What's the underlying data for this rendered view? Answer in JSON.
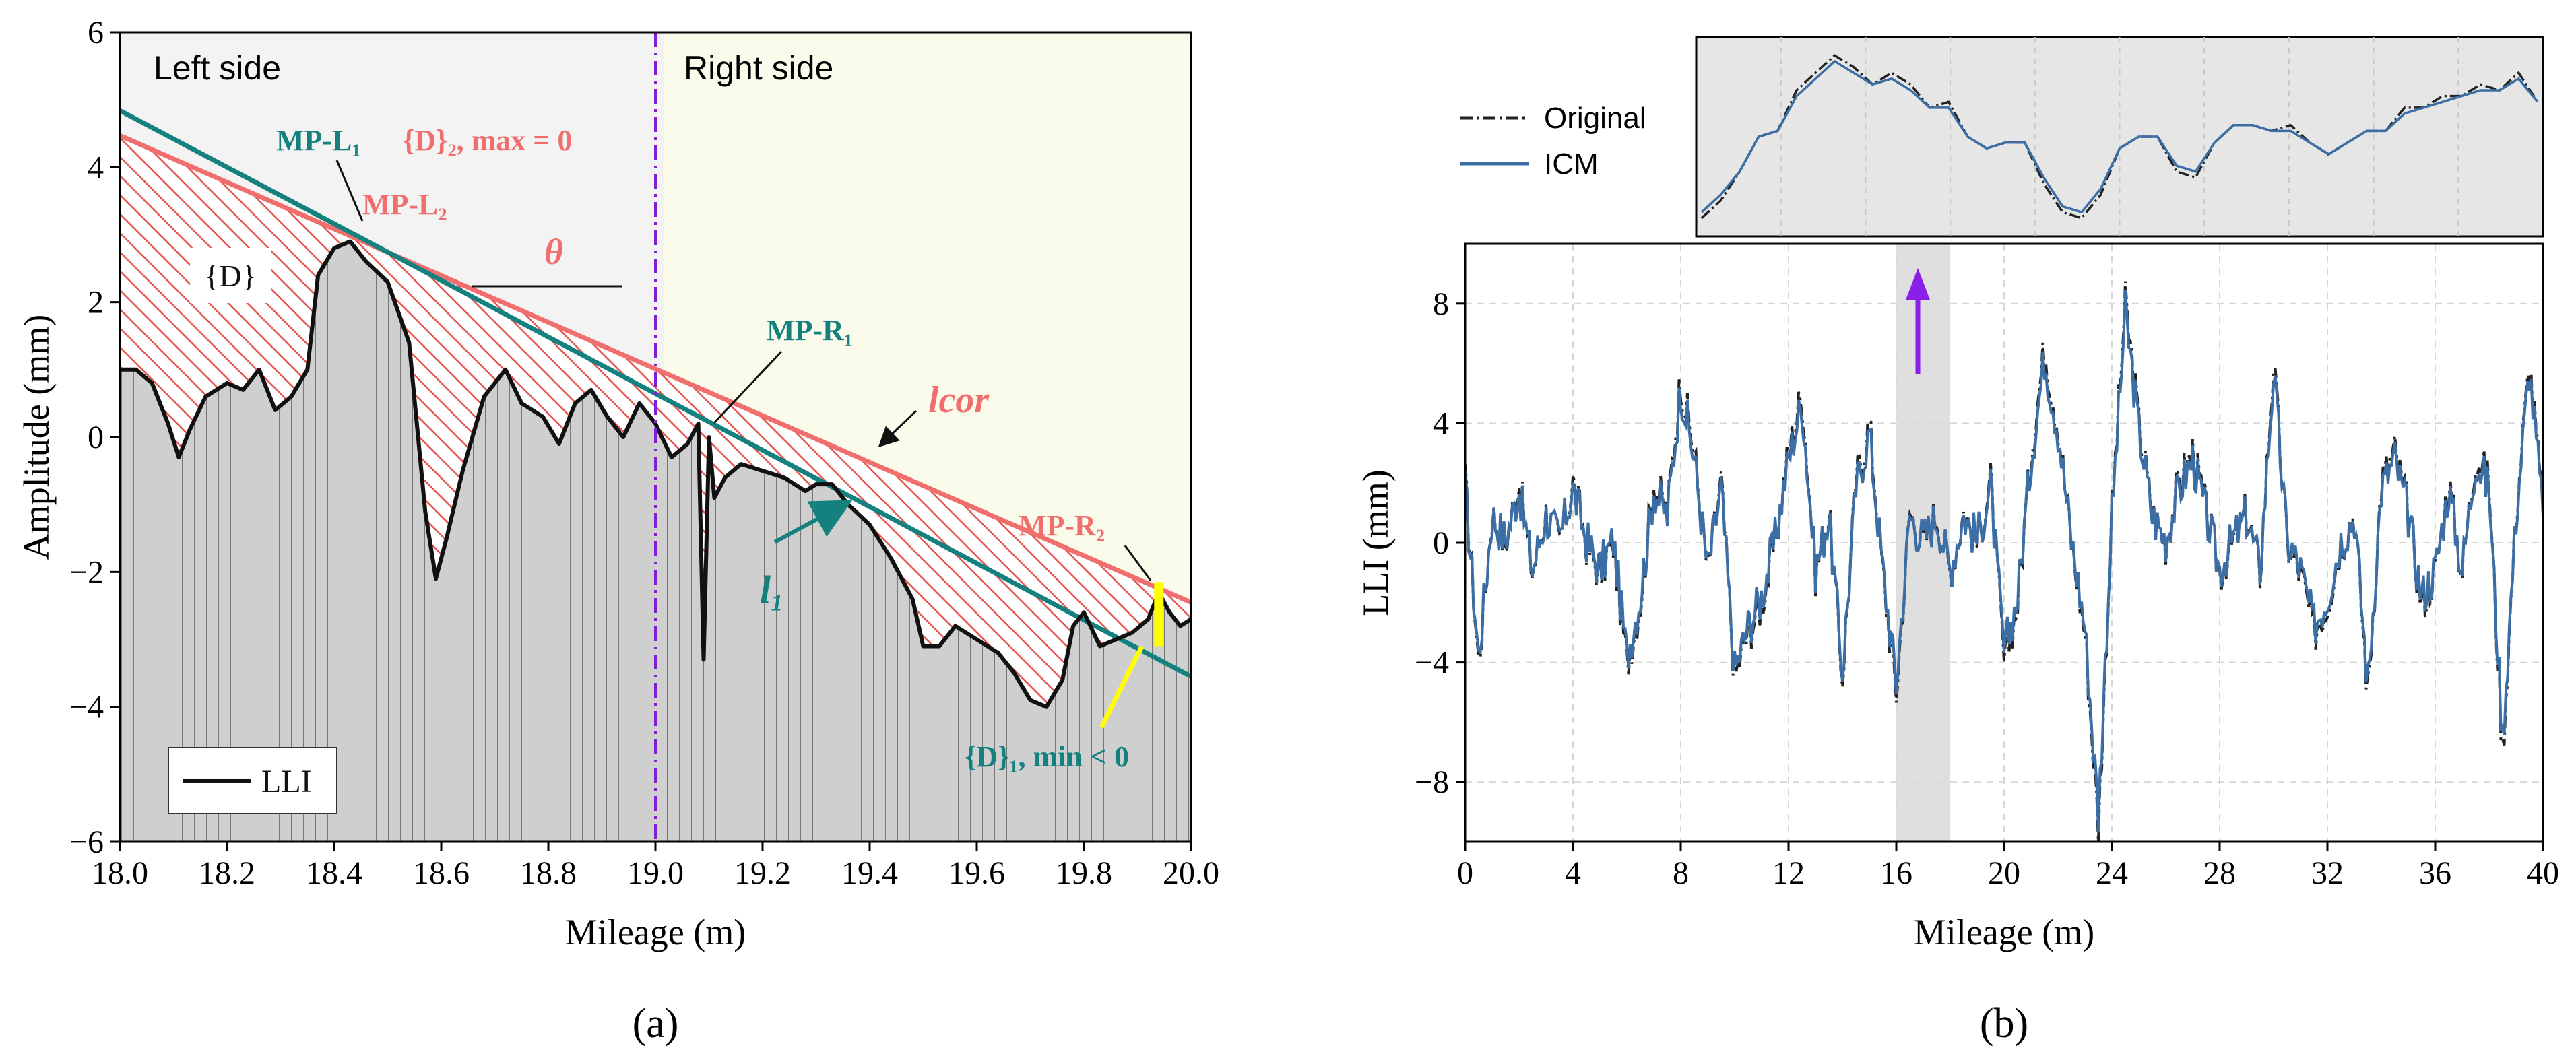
{
  "chart_data": [
    {
      "panel": "a",
      "type": "area",
      "panel_label": "(a)",
      "xlabel": "Mileage (m)",
      "ylabel": "Amplitude (mm)",
      "xlim": [
        18.0,
        20.0
      ],
      "ylim": [
        -6,
        6
      ],
      "x_ticks": [
        18.0,
        18.2,
        18.4,
        18.6,
        18.8,
        19.0,
        19.2,
        19.4,
        19.6,
        19.8,
        20.0
      ],
      "y_ticks": [
        -6,
        -4,
        -2,
        0,
        2,
        4,
        6
      ],
      "x_tick_labels": [
        "18.0",
        "18.2",
        "18.4",
        "18.6",
        "18.8",
        "19.0",
        "19.2",
        "19.4",
        "19.6",
        "19.8",
        "20.0"
      ],
      "y_tick_labels": [
        "−6",
        "−4",
        "−2",
        "0",
        "2",
        "4",
        "6"
      ],
      "divider_x": 19.0,
      "regions": {
        "left": "Left side",
        "right": "Right side"
      },
      "legend": {
        "label": "LLI",
        "placement": "bottom-left"
      },
      "series": [
        {
          "name": "LLI",
          "x": [
            18.0,
            18.03,
            18.06,
            18.09,
            18.11,
            18.13,
            18.16,
            18.2,
            18.23,
            18.26,
            18.29,
            18.32,
            18.35,
            18.37,
            18.4,
            18.43,
            18.46,
            18.5,
            18.54,
            18.57,
            18.59,
            18.61,
            18.64,
            18.68,
            18.72,
            18.75,
            18.79,
            18.82,
            18.85,
            18.88,
            18.91,
            18.94,
            18.97,
            19.0,
            19.03,
            19.06,
            19.08,
            19.09,
            19.1,
            19.11,
            19.13,
            19.16,
            19.2,
            19.24,
            19.28,
            19.3,
            19.33,
            19.36,
            19.4,
            19.44,
            19.48,
            19.5,
            19.53,
            19.56,
            19.6,
            19.64,
            19.67,
            19.7,
            19.73,
            19.76,
            19.78,
            19.8,
            19.83,
            19.86,
            19.89,
            19.92,
            19.94,
            19.96,
            19.98,
            20.0
          ],
          "y": [
            1.0,
            1.0,
            0.8,
            0.2,
            -0.3,
            0.1,
            0.6,
            0.8,
            0.7,
            1.0,
            0.4,
            0.6,
            1.0,
            2.4,
            2.8,
            2.9,
            2.6,
            2.3,
            1.4,
            -1.1,
            -2.1,
            -1.5,
            -0.5,
            0.6,
            1.0,
            0.5,
            0.3,
            -0.1,
            0.5,
            0.7,
            0.3,
            0.0,
            0.5,
            0.2,
            -0.3,
            -0.1,
            0.2,
            -3.3,
            0.0,
            -0.9,
            -0.6,
            -0.4,
            -0.5,
            -0.6,
            -0.8,
            -0.7,
            -0.7,
            -1.0,
            -1.3,
            -1.8,
            -2.4,
            -3.1,
            -3.1,
            -2.8,
            -3.0,
            -3.2,
            -3.5,
            -3.9,
            -4.0,
            -3.6,
            -2.8,
            -2.6,
            -3.1,
            -3.0,
            -2.9,
            -2.7,
            -2.3,
            -2.6,
            -2.8,
            -2.7
          ]
        }
      ],
      "lines": [
        {
          "name": "l_cor",
          "label": "lcor",
          "x": [
            18.0,
            20.0
          ],
          "y": [
            4.47,
            -2.45
          ],
          "color": "#f06e6e"
        },
        {
          "name": "l_1",
          "label": "l1",
          "x": [
            18.0,
            20.0
          ],
          "y": [
            4.84,
            -3.55
          ],
          "color": "#15817f"
        }
      ],
      "annotations": {
        "mp_l1": "MP-L₁",
        "d2_max": "{D}₂, max = 0",
        "mp_l2": "MP-L₂",
        "theta": "θ",
        "d_set": "{D}",
        "mp_r1": "MP-R₁",
        "l_cor": "lcor",
        "l1": "l₁",
        "mp_r2": "MP-R₂",
        "d1_min": "{D}₁, min < 0"
      }
    },
    {
      "panel": "b",
      "type": "line",
      "panel_label": "(b)",
      "xlabel": "Mileage (m)",
      "ylabel": "LLI (mm)",
      "xlim": [
        0,
        40
      ],
      "ylim": [
        -10,
        10
      ],
      "x_ticks": [
        0,
        4,
        8,
        12,
        16,
        20,
        24,
        28,
        32,
        36,
        40
      ],
      "y_ticks": [
        -8,
        -4,
        0,
        4,
        8
      ],
      "x_tick_labels": [
        "0",
        "4",
        "8",
        "12",
        "16",
        "20",
        "24",
        "28",
        "32",
        "36",
        "40"
      ],
      "y_tick_labels": [
        "−8",
        "−4",
        "0",
        "4",
        "8"
      ],
      "highlight_range": [
        16,
        18
      ],
      "legend": {
        "entries": [
          "Original",
          "ICM"
        ],
        "placement": "top-left"
      },
      "series": [
        {
          "name": "Original",
          "x": [
            0,
            0.5,
            1,
            1.5,
            2,
            2.5,
            3,
            3.5,
            4,
            4.5,
            5,
            5.5,
            6,
            6.5,
            7,
            7.5,
            8,
            8.5,
            9,
            9.5,
            10,
            10.5,
            11,
            11.5,
            12,
            12.5,
            13,
            13.5,
            14,
            14.5,
            15,
            15.5,
            16,
            16.5,
            17,
            17.5,
            18,
            18.5,
            19,
            19.5,
            20,
            20.5,
            21,
            21.5,
            22,
            22.5,
            23,
            23.5,
            24,
            24.5,
            25,
            25.5,
            26,
            26.5,
            27,
            27.5,
            28,
            28.5,
            29,
            29.5,
            30,
            30.5,
            31,
            31.5,
            32,
            32.5,
            33,
            33.5,
            34,
            34.5,
            35,
            35.5,
            36,
            36.5,
            37,
            37.5,
            38,
            38.5,
            39,
            39.5,
            40
          ],
          "y": [
            2,
            -4,
            1,
            0,
            2,
            -1,
            1,
            0,
            2,
            0,
            -1,
            0,
            -4,
            -2,
            2,
            1,
            5.5,
            3,
            -1,
            2,
            -4.5,
            -3,
            -2,
            0,
            3,
            5,
            -1,
            1,
            -4.5,
            2,
            4,
            -1,
            -5,
            1,
            0,
            1,
            -1,
            1,
            0,
            2,
            -4,
            -2,
            3,
            6.5,
            4,
            0,
            -3,
            -9.5,
            1,
            8,
            4,
            1,
            0,
            2,
            3,
            1,
            -1,
            0,
            1,
            -1,
            6,
            0,
            -1,
            -3,
            -2,
            0,
            1,
            -5,
            2,
            3,
            1,
            -2,
            -1,
            2,
            -1,
            3,
            2,
            -7,
            1,
            6,
            1
          ]
        },
        {
          "name": "ICM",
          "x": [
            0,
            0.5,
            1,
            1.5,
            2,
            2.5,
            3,
            3.5,
            4,
            4.5,
            5,
            5.5,
            6,
            6.5,
            7,
            7.5,
            8,
            8.5,
            9,
            9.5,
            10,
            10.5,
            11,
            11.5,
            12,
            12.5,
            13,
            13.5,
            14,
            14.5,
            15,
            15.5,
            16,
            16.5,
            17,
            17.5,
            18,
            18.5,
            19,
            19.5,
            20,
            20.5,
            21,
            21.5,
            22,
            22.5,
            23,
            23.5,
            24,
            24.5,
            25,
            25.5,
            26,
            26.5,
            27,
            27.5,
            28,
            28.5,
            29,
            29.5,
            30,
            30.5,
            31,
            31.5,
            32,
            32.5,
            33,
            33.5,
            34,
            34.5,
            35,
            35.5,
            36,
            36.5,
            37,
            37.5,
            38,
            38.5,
            39,
            39.5,
            40
          ],
          "y": [
            1.8,
            -3.8,
            0.9,
            0.1,
            1.8,
            -0.9,
            0.9,
            0.1,
            1.8,
            0.1,
            -0.9,
            0.1,
            -3.8,
            -1.8,
            1.8,
            0.9,
            5.2,
            2.8,
            -0.9,
            1.8,
            -4.3,
            -2.8,
            -1.8,
            0.1,
            2.8,
            4.7,
            -0.9,
            0.9,
            -4.3,
            1.8,
            3.7,
            -0.9,
            -4.7,
            0.9,
            0.1,
            0.9,
            -0.9,
            0.9,
            0.1,
            1.8,
            -3.7,
            -1.8,
            2.8,
            6.2,
            3.8,
            0.1,
            -2.8,
            -9.1,
            0.9,
            7.7,
            3.8,
            0.9,
            0.1,
            1.8,
            2.8,
            0.9,
            -0.9,
            0.1,
            0.9,
            -0.9,
            5.7,
            0.1,
            -0.9,
            -2.8,
            -1.8,
            0.1,
            0.9,
            -4.7,
            1.8,
            2.8,
            0.9,
            -1.8,
            -0.9,
            1.8,
            -0.9,
            2.8,
            1.8,
            -6.6,
            0.9,
            5.8,
            0.9
          ]
        }
      ],
      "inset": {
        "x_range": [
          16,
          18
        ],
        "original": [
          -1.0,
          -0.7,
          -0.2,
          0.4,
          0.5,
          1.2,
          1.5,
          1.8,
          1.6,
          1.3,
          1.5,
          1.3,
          0.9,
          1.0,
          0.4,
          0.2,
          0.3,
          0.3,
          -0.4,
          -0.9,
          -1.0,
          -0.6,
          0.2,
          0.4,
          0.4,
          -0.2,
          -0.3,
          0.3,
          0.6,
          0.6,
          0.5,
          0.6,
          0.3,
          0.1,
          0.3,
          0.5,
          0.5,
          0.9,
          0.9,
          1.1,
          1.1,
          1.3,
          1.2,
          1.5,
          1.0
        ],
        "icm": [
          -0.9,
          -0.6,
          -0.2,
          0.4,
          0.5,
          1.1,
          1.4,
          1.7,
          1.5,
          1.3,
          1.4,
          1.2,
          0.9,
          0.9,
          0.4,
          0.2,
          0.3,
          0.3,
          -0.3,
          -0.8,
          -0.9,
          -0.5,
          0.2,
          0.4,
          0.4,
          -0.1,
          -0.2,
          0.3,
          0.6,
          0.6,
          0.5,
          0.5,
          0.3,
          0.1,
          0.3,
          0.5,
          0.5,
          0.8,
          0.9,
          1.0,
          1.1,
          1.2,
          1.2,
          1.4,
          1.0
        ]
      }
    }
  ]
}
